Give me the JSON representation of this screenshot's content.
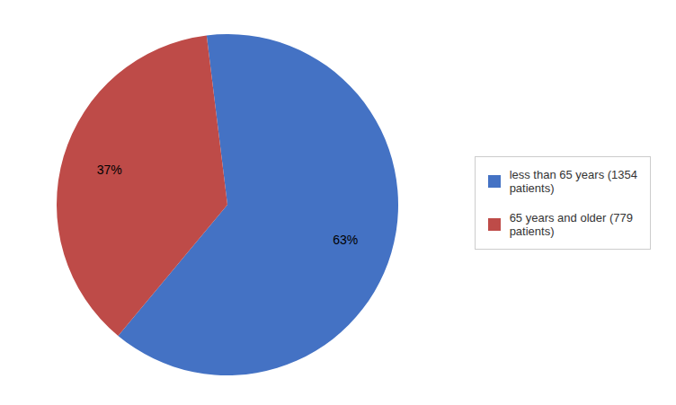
{
  "chart_data": {
    "type": "pie",
    "categories": [
      "less than 65 years (1354\npatients)",
      "65 years and older (779\npatients)"
    ],
    "values": [
      63,
      37
    ],
    "value_labels": [
      "63%",
      "37%"
    ],
    "colors": [
      "#4472C4",
      "#BE4B48"
    ],
    "data_labels": true,
    "legend": "right"
  }
}
